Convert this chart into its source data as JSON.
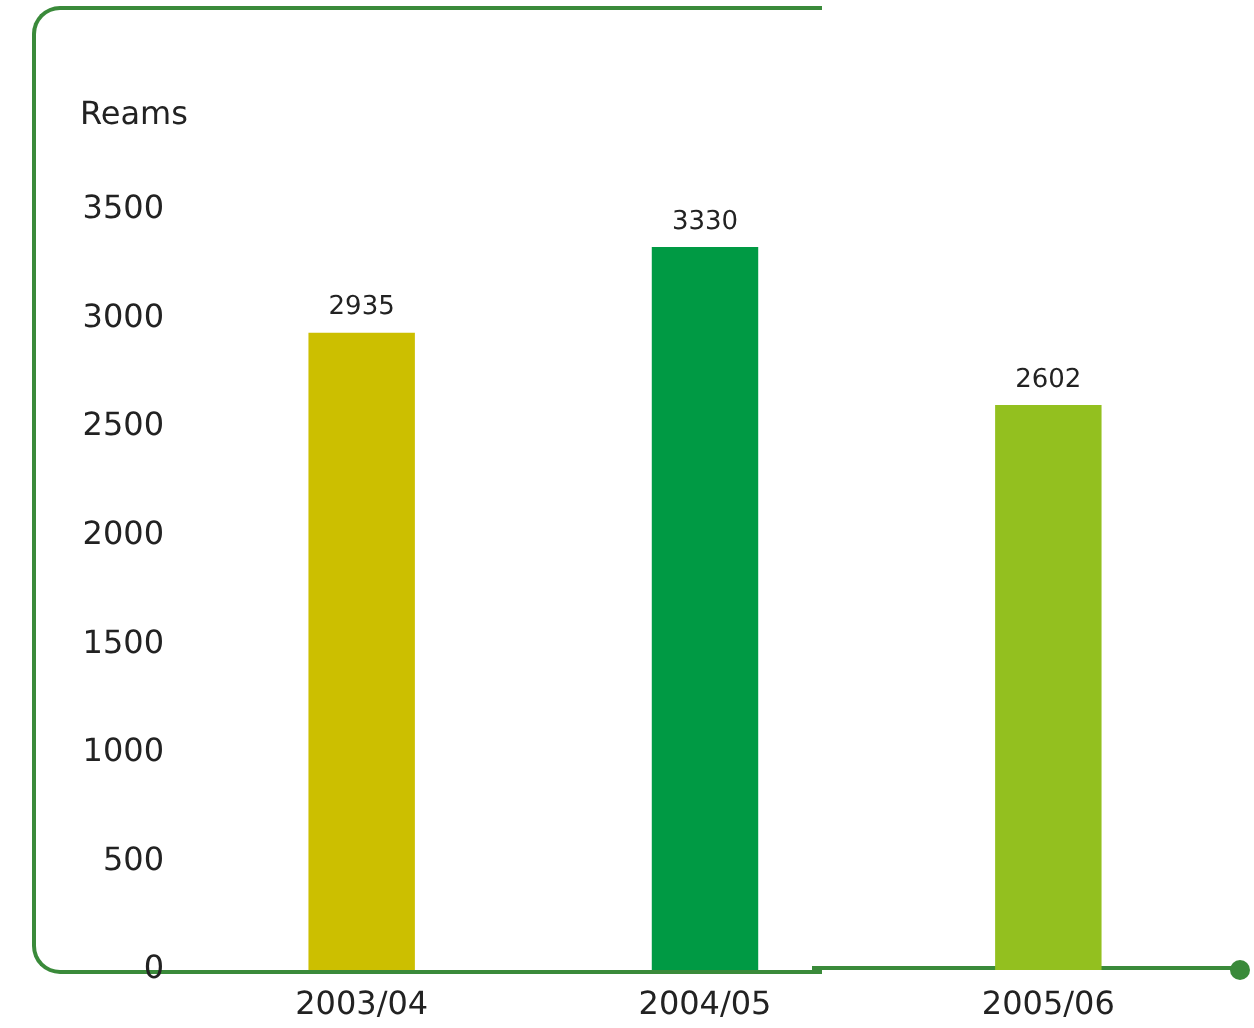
{
  "chart_data": {
    "type": "bar",
    "ylabel": "Reams",
    "categories": [
      "2003/04",
      "2004/05",
      "2005/06"
    ],
    "values": [
      2935,
      3330,
      2602
    ],
    "colors": [
      "#ccbf00",
      "#009a44",
      "#93c01f"
    ],
    "ylim": [
      0,
      3500
    ],
    "yticks": [
      0,
      500,
      1000,
      1500,
      2000,
      2500,
      3000,
      3500
    ],
    "grid": false,
    "legend": false,
    "data_labels": true
  }
}
